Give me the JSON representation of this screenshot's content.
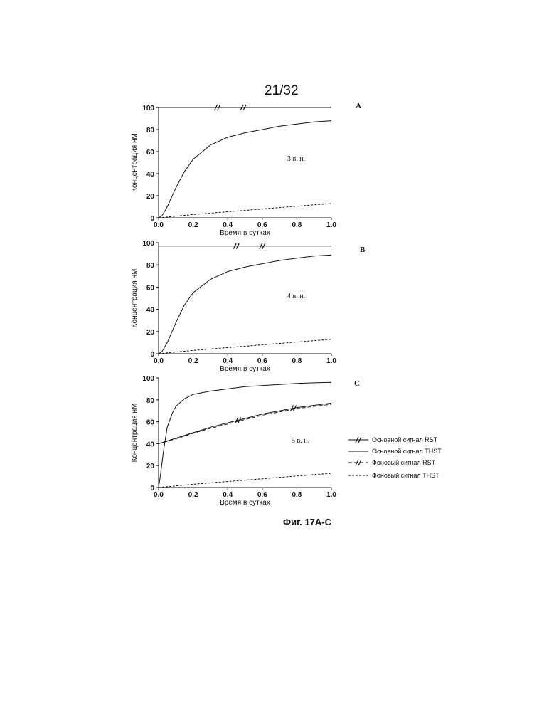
{
  "page_number": "21/32",
  "figure_caption": "Фиг. 17A-C",
  "legend": [
    {
      "label": "Основной сигнал RST",
      "style": "solid",
      "marker": "break"
    },
    {
      "label": "Основной сигнал THST",
      "style": "solid",
      "marker": "none"
    },
    {
      "label": "Фоновый сигнал RST",
      "style": "dashed",
      "marker": "break"
    },
    {
      "label": "Фоновый сигнал THST",
      "style": "dotted",
      "marker": "none"
    }
  ],
  "chart_data": [
    {
      "type": "line",
      "panel": "A",
      "annotation": "3 в. н.",
      "xlabel": "Время в сутках",
      "ylabel": "Концентрация нМ",
      "xlim": [
        0,
        1
      ],
      "ylim": [
        0,
        100
      ],
      "xticks": [
        "0.0",
        "0.2",
        "0.4",
        "0.6",
        "0.8",
        "1.0"
      ],
      "yticks": [
        "0",
        "20",
        "40",
        "60",
        "80",
        "100"
      ],
      "series": [
        {
          "legend_index": 0,
          "style": "solid",
          "x": [
            0.0,
            0.0,
            1.0
          ],
          "y": [
            0,
            100,
            100
          ],
          "break_marks_x": [
            0.34,
            0.49
          ]
        },
        {
          "legend_index": 1,
          "style": "solid",
          "x": [
            0.0,
            0.02,
            0.05,
            0.1,
            0.15,
            0.2,
            0.3,
            0.4,
            0.5,
            0.6,
            0.7,
            0.8,
            0.9,
            1.0
          ],
          "y": [
            0,
            2,
            10,
            27,
            42,
            53,
            66,
            73,
            77,
            80,
            83,
            85,
            87,
            88
          ]
        },
        {
          "legend_index": 3,
          "style": "dotted",
          "x": [
            0.0,
            0.2,
            0.4,
            0.6,
            0.8,
            1.0
          ],
          "y": [
            0,
            3,
            5.5,
            8,
            10.5,
            13
          ]
        }
      ]
    },
    {
      "type": "line",
      "panel": "B",
      "annotation": "4 в. н.",
      "xlabel": "Время в сутках",
      "ylabel": "Концентрация нМ",
      "xlim": [
        0,
        1
      ],
      "ylim": [
        0,
        100
      ],
      "xticks": [
        "0.0",
        "0.2",
        "0.4",
        "0.6",
        "0.8",
        "1.0"
      ],
      "yticks": [
        "0",
        "20",
        "40",
        "60",
        "80",
        "100"
      ],
      "series": [
        {
          "legend_index": 0,
          "style": "solid",
          "x": [
            0.0,
            0.0,
            1.0
          ],
          "y": [
            0,
            97,
            97
          ],
          "break_marks_x": [
            0.45,
            0.6
          ]
        },
        {
          "legend_index": 1,
          "style": "solid",
          "x": [
            0.0,
            0.02,
            0.05,
            0.1,
            0.15,
            0.2,
            0.3,
            0.4,
            0.5,
            0.6,
            0.7,
            0.8,
            0.9,
            1.0
          ],
          "y": [
            0,
            2,
            10,
            28,
            44,
            55,
            67,
            74,
            78,
            81,
            84,
            86,
            88,
            89
          ]
        },
        {
          "legend_index": 3,
          "style": "dotted",
          "x": [
            0.0,
            0.2,
            0.4,
            0.6,
            0.8,
            1.0
          ],
          "y": [
            0,
            3,
            5.5,
            8,
            10.5,
            13
          ]
        }
      ]
    },
    {
      "type": "line",
      "panel": "C",
      "annotation": "5 в. н.",
      "xlabel": "Время в сутках",
      "ylabel": "Концентрация нМ",
      "xlim": [
        0,
        1
      ],
      "ylim": [
        0,
        100
      ],
      "xticks": [
        "0.0",
        "0.2",
        "0.4",
        "0.6",
        "0.8",
        "1.0"
      ],
      "yticks": [
        "0",
        "20",
        "40",
        "60",
        "80",
        "100"
      ],
      "series": [
        {
          "legend_index": 0,
          "style": "solid",
          "x": [
            0.0,
            0.1,
            0.2,
            0.3,
            0.4,
            0.5,
            0.6,
            0.7,
            0.8,
            0.9,
            1.0
          ],
          "y": [
            40,
            45,
            50,
            55,
            59,
            63,
            67,
            70,
            73,
            75,
            77
          ],
          "break_marks_x": [
            0.46,
            0.78
          ]
        },
        {
          "legend_index": 1,
          "style": "solid",
          "x": [
            0.0,
            0.01,
            0.03,
            0.05,
            0.08,
            0.1,
            0.15,
            0.2,
            0.3,
            0.4,
            0.5,
            0.6,
            0.7,
            0.8,
            0.9,
            1.0
          ],
          "y": [
            0,
            10,
            35,
            55,
            68,
            74,
            81,
            85,
            88,
            90,
            92,
            93,
            94,
            95,
            95.5,
            96
          ]
        },
        {
          "legend_index": 2,
          "style": "dashed",
          "x": [
            0.0,
            0.1,
            0.2,
            0.3,
            0.4,
            0.5,
            0.6,
            0.7,
            0.8,
            0.9,
            1.0
          ],
          "y": [
            40,
            44.5,
            49.5,
            54,
            58,
            62,
            66,
            69,
            72,
            74,
            76
          ]
        },
        {
          "legend_index": 3,
          "style": "dotted",
          "x": [
            0.0,
            0.2,
            0.4,
            0.6,
            0.8,
            1.0
          ],
          "y": [
            0,
            3,
            5.5,
            8,
            10.5,
            13
          ]
        }
      ]
    }
  ]
}
